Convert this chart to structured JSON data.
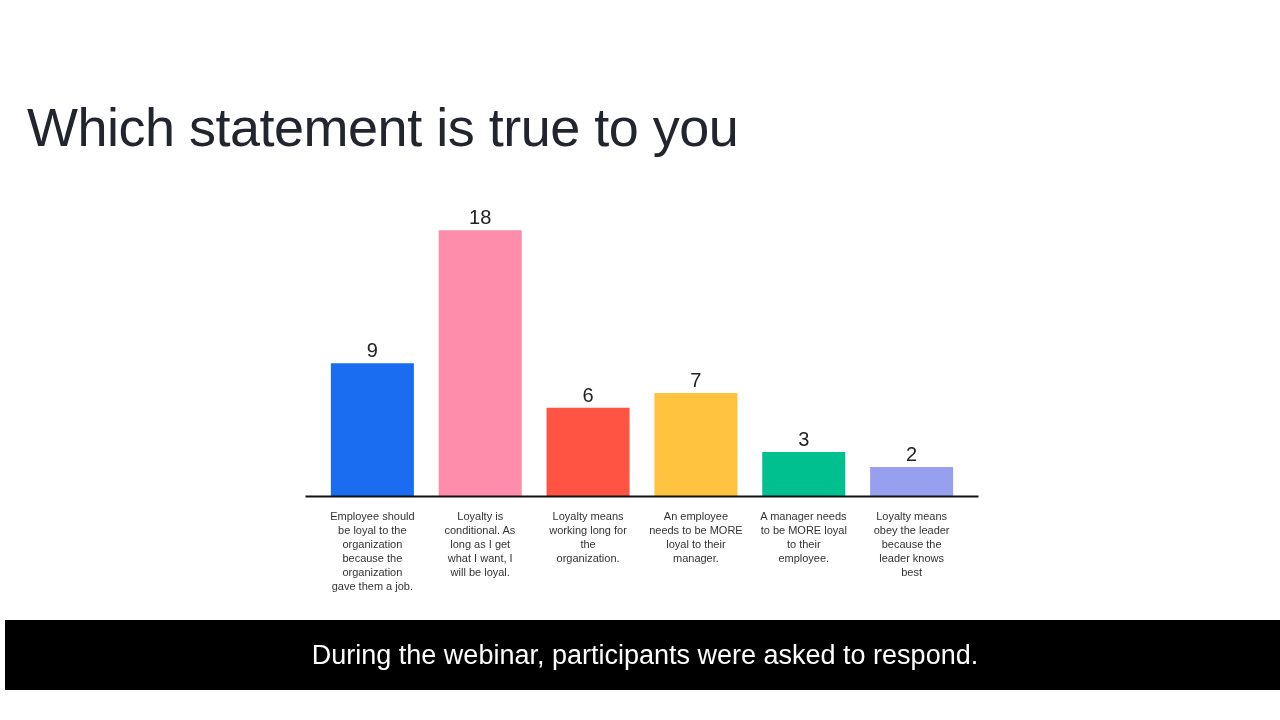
{
  "chart_data": {
    "type": "bar",
    "title": "Which statement is true to you",
    "categories": [
      "Employee should be loyal to the organization because the organization gave them a job.",
      "Loyalty is conditional. As long as I get what I want, I will be loyal.",
      "Loyalty means working long for the organization.",
      "An employee needs to be MORE loyal to their manager.",
      "A manager needs to be MORE loyal to their employee.",
      "Loyalty means obey the leader because the leader knows best"
    ],
    "values": [
      9,
      18,
      6,
      7,
      3,
      2
    ],
    "colors": [
      "#1a6cf0",
      "#fd8dab",
      "#ff5443",
      "#ffc340",
      "#00c08f",
      "#97a0ee"
    ],
    "data_labels": true,
    "grid": false,
    "tick_labels": "x",
    "annotations": [
      "During the webinar, participants were asked to respond."
    ]
  }
}
